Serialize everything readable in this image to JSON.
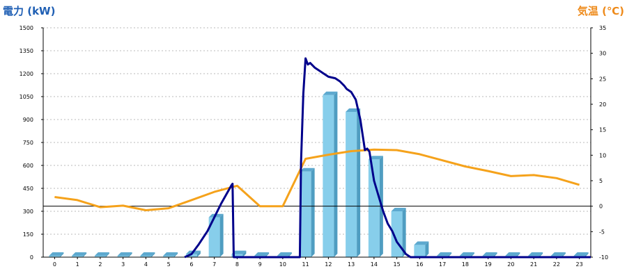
{
  "chart_data": {
    "type": "bar",
    "left_axis_title": "電力 (kW)",
    "right_axis_title": "気温 (℃)",
    "categories": [
      "0",
      "1",
      "2",
      "3",
      "4",
      "5",
      "6",
      "7",
      "8",
      "9",
      "10",
      "11",
      "12",
      "13",
      "14",
      "15",
      "16",
      "17",
      "18",
      "19",
      "20",
      "21",
      "22",
      "23"
    ],
    "left_ylim": [
      0,
      1500
    ],
    "right_ylim": [
      -10,
      35
    ],
    "left_ticks": [
      "0",
      "150",
      "300",
      "450",
      "600",
      "750",
      "900",
      "1050",
      "1200",
      "1350",
      "1500"
    ],
    "right_ticks": [
      "-10",
      "-5",
      "0",
      "5",
      "10",
      "15",
      "20",
      "25",
      "30",
      "35"
    ],
    "grid": true,
    "bars": {
      "axis": "left",
      "values": [
        0,
        0,
        0,
        0,
        0,
        0,
        20,
        260,
        20,
        0,
        0,
        560,
        1060,
        950,
        640,
        300,
        80,
        0,
        0,
        0,
        0,
        0,
        0,
        0
      ]
    },
    "power_line": {
      "axis": "left",
      "x": [
        5.7,
        6.0,
        6.3,
        6.7,
        7.0,
        7.3,
        7.6,
        7.75,
        7.8,
        7.85,
        8.0,
        9.0,
        10.0,
        10.75,
        10.8,
        10.9,
        11.0,
        11.1,
        11.2,
        11.4,
        11.6,
        11.8,
        12.0,
        12.3,
        12.5,
        12.7,
        12.8,
        13.0,
        13.2,
        13.4,
        13.6,
        13.7,
        13.8,
        14.0,
        14.2,
        14.4,
        14.6,
        14.8,
        15.0,
        15.2,
        15.4,
        15.6,
        15.8,
        16.0,
        16.3,
        16.6,
        16.8,
        17.0,
        23.5
      ],
      "y": [
        0,
        20,
        80,
        170,
        260,
        350,
        430,
        470,
        480,
        0,
        0,
        0,
        0,
        0,
        620,
        1070,
        1300,
        1260,
        1270,
        1240,
        1220,
        1200,
        1180,
        1170,
        1150,
        1120,
        1100,
        1080,
        1030,
        900,
        700,
        710,
        690,
        500,
        400,
        300,
        220,
        170,
        100,
        60,
        20,
        0,
        0,
        0,
        0,
        0,
        0,
        0,
        0
      ]
    },
    "temperature_line": {
      "axis": "right",
      "x": [
        0,
        1,
        2,
        3,
        4,
        5,
        6,
        7,
        8,
        9,
        10,
        11,
        12,
        13,
        14,
        15,
        16,
        17,
        18,
        19,
        20,
        21,
        22,
        23
      ],
      "y": [
        1.8,
        1.2,
        -0.2,
        0.1,
        -0.8,
        -0.4,
        1.2,
        2.8,
        4.0,
        0,
        0,
        9.3,
        10.1,
        10.8,
        11.1,
        11.0,
        10.2,
        9.0,
        7.8,
        6.9,
        5.9,
        6.1,
        5.5,
        4.2
      ]
    },
    "colors": {
      "title": "#1f5fb4",
      "temp_title": "#ee8a1a",
      "bar_front": "#87ceeb",
      "bar_side": "#4f9dc1",
      "bar_top": "#5da9cf",
      "power_line": "#00008b",
      "temp_line": "#f5a21b",
      "grid": "#b8b8b8"
    }
  }
}
